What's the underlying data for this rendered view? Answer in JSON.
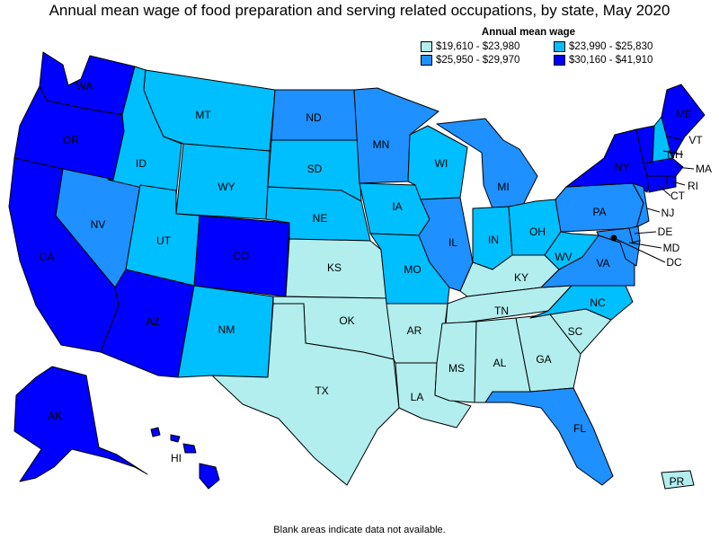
{
  "title": "Annual mean wage of food preparation and serving related occupations, by state, May 2020",
  "legend": {
    "title": "Annual mean wage",
    "items": [
      {
        "label": "$19,610 - $23,980",
        "color": "#b2eeee"
      },
      {
        "label": "$23,990 - $25,830",
        "color": "#00bfff"
      },
      {
        "label": "$25,950 - $29,970",
        "color": "#1e90ff"
      },
      {
        "label": "$30,160 - $41,910",
        "color": "#0000ff"
      }
    ]
  },
  "footnote": "Blank areas indicate data not available.",
  "states": {
    "WA": 3,
    "OR": 3,
    "CA": 3,
    "NV": 2,
    "ID": 1,
    "MT": 1,
    "WY": 1,
    "UT": 1,
    "AZ": 3,
    "CO": 3,
    "NM": 1,
    "ND": 2,
    "SD": 1,
    "NE": 1,
    "KS": 0,
    "OK": 0,
    "TX": 0,
    "MN": 2,
    "IA": 1,
    "MO": 1,
    "AR": 0,
    "LA": 0,
    "WI": 1,
    "IL": 2,
    "MI": 2,
    "IN": 1,
    "OH": 1,
    "KY": 0,
    "TN": 0,
    "MS": 0,
    "AL": 0,
    "GA": 0,
    "FL": 2,
    "SC": 0,
    "NC": 1,
    "VA": 2,
    "WV": 1,
    "PA": 2,
    "NY": 3,
    "VT": 3,
    "NH": 1,
    "ME": 3,
    "MA": 3,
    "RI": 3,
    "CT": 3,
    "NJ": 2,
    "DE": 2,
    "MD": 2,
    "DC": 3,
    "AK": 3,
    "HI": 3,
    "PR": 0
  }
}
